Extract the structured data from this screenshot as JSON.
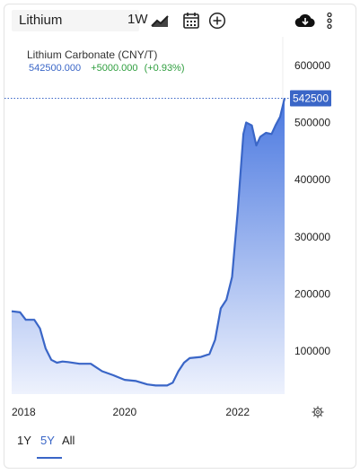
{
  "toolbar": {
    "search_value": "Lithium",
    "range_label": "1W",
    "icons": [
      "line-chart-icon",
      "calendar-icon",
      "add-circle-icon",
      "cloud-download-icon",
      "more-vert-icon"
    ]
  },
  "chart_data": {
    "type": "area",
    "title": "Lithium Carbonate (CNY/T)",
    "last_value": "542500.000",
    "change": "+5000.000",
    "change_pct": "(+0.93%)",
    "last_label": "542500",
    "y_ticks": [
      "600000",
      "500000",
      "400000",
      "300000",
      "200000",
      "100000"
    ],
    "y_tick_values": [
      600000,
      500000,
      400000,
      300000,
      200000,
      100000
    ],
    "x_ticks": [
      "2018",
      "2020",
      "2022"
    ],
    "x_tick_values": [
      2018.0,
      2020.0,
      2022.0
    ],
    "xlim": [
      2018.0,
      2022.83
    ],
    "ylim": [
      25000,
      650000
    ],
    "x": [
      2018.0,
      2018.15,
      2018.25,
      2018.4,
      2018.5,
      2018.6,
      2018.7,
      2018.8,
      2018.9,
      2019.0,
      2019.2,
      2019.4,
      2019.6,
      2019.8,
      2020.0,
      2020.2,
      2020.4,
      2020.55,
      2020.75,
      2020.85,
      2020.95,
      2021.05,
      2021.15,
      2021.35,
      2021.5,
      2021.6,
      2021.7,
      2021.8,
      2021.9,
      2022.0,
      2022.1,
      2022.15,
      2022.25,
      2022.33,
      2022.4,
      2022.5,
      2022.6,
      2022.67,
      2022.75,
      2022.8,
      2022.83
    ],
    "y": [
      170000,
      168000,
      155000,
      155000,
      140000,
      105000,
      85000,
      80000,
      82000,
      81000,
      78000,
      78000,
      65000,
      58000,
      50000,
      48000,
      42000,
      40000,
      40000,
      45000,
      65000,
      80000,
      88000,
      90000,
      95000,
      120000,
      175000,
      190000,
      230000,
      345000,
      480000,
      500000,
      495000,
      460000,
      475000,
      482000,
      480000,
      495000,
      510000,
      530000,
      542500
    ],
    "grid": false,
    "colors": {
      "line": "#3a66c7",
      "fill_top": "#4a78e0",
      "fill_bottom": "#eef2fd",
      "badge": "#3a66c7",
      "up": "#2e9e3e"
    }
  },
  "tabs": {
    "items": [
      "1Y",
      "5Y",
      "All"
    ],
    "active": "5Y"
  }
}
